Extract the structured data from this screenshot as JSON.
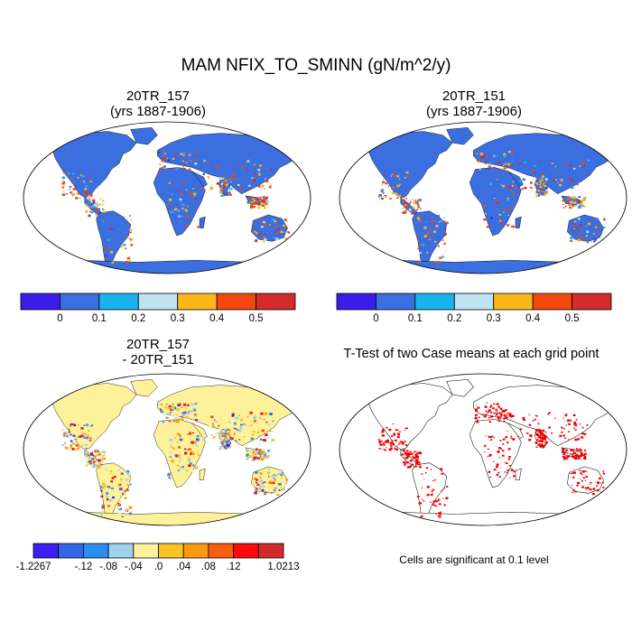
{
  "figure": {
    "title": "MAM NFIX_TO_SMINN (gN/m^2/y)"
  },
  "panels": [
    {
      "id": "case1",
      "title_line1": "20TR_157",
      "title_line2": "(yrs 1887-1906)"
    },
    {
      "id": "case2",
      "title_line1": "20TR_151",
      "title_line2": "(yrs 1887-1906)"
    },
    {
      "id": "diff",
      "title_line1": "20TR_157",
      "title_line2": "- 20TR_151"
    },
    {
      "id": "ttest",
      "title_line1": "T-Test of two Case means at each grid point",
      "note": "Cells are significant at 0.1 level"
    }
  ],
  "colorbar_top": {
    "colors": [
      "#3a1ee8",
      "#3b6fe0",
      "#19b4ef",
      "#bfe3f0",
      "#fbb61a",
      "#f2480e",
      "#d42b2b"
    ],
    "labels": [
      "0",
      "0.1",
      "0.2",
      "0.3",
      "0.4",
      "0.5"
    ]
  },
  "colorbar_diff": {
    "colors": [
      "#3b1ff0",
      "#3366e6",
      "#2a8ef0",
      "#9fd0ef",
      "#fdf29a",
      "#fbc323",
      "#fb9a11",
      "#f55f0e",
      "#fb0a0a",
      "#d12a2a"
    ],
    "labels": [
      "-1.2267",
      "-.12",
      "-.08",
      "-.04",
      ".0",
      ".04",
      ".08",
      ".12",
      "1.0213"
    ]
  },
  "map_colors": {
    "ocean": "#ffffff",
    "land_case": "#3b6fe0",
    "land_diff": "#fdf29a",
    "significant": "#ee0000",
    "coast": "#000000"
  }
}
